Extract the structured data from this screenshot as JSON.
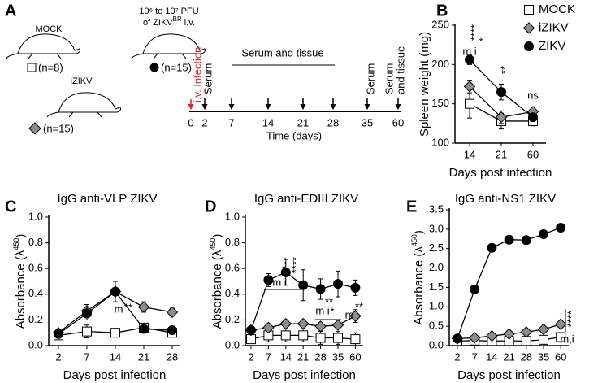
{
  "panel_a": {
    "panel": "A",
    "mock": "MOCK",
    "dose_line1": "10⁶ to 10⁷ PFU",
    "dose_line2": "of ZIKV",
    "dose_sup": "BR",
    "dose_end": " i.v.",
    "izikv": "iZIKV",
    "n_mock": "(n=8)",
    "n_zikv": "(n=15)",
    "n_izikv": "(n=15)",
    "infection": "i.v. Infection",
    "serum_left": "Serum",
    "serum_tissue_mid": "Serum and tissue",
    "serum_right": "Serum",
    "serum_tissue_right": [
      "Serum",
      "and tissue"
    ],
    "timeline_days": [
      0,
      2,
      7,
      14,
      21,
      28,
      35,
      60
    ],
    "timeline_label": "Time (days)"
  },
  "chart_data": [
    {
      "type": "line",
      "panel": "B",
      "ylabel": "Spleen weight (mg)",
      "xlabel": "Days post infection",
      "categories": [
        14,
        21,
        60
      ],
      "ylim": [
        100,
        250
      ],
      "yticks": [
        100,
        150,
        200,
        250
      ],
      "legend": "upper right",
      "series": [
        {
          "name": "MOCK",
          "color": "#ffffff",
          "marker": "square",
          "values": [
            150,
            128,
            128
          ],
          "errors": [
            18,
            10,
            6
          ]
        },
        {
          "name": "iZIKV",
          "color": "#8c8c8c",
          "marker": "diamond",
          "values": [
            172,
            133,
            140
          ],
          "errors": [
            8,
            8,
            6
          ]
        },
        {
          "name": "ZIKV",
          "color": "#000000",
          "marker": "circle",
          "values": [
            206,
            165,
            133
          ],
          "errors": [
            6,
            10,
            4
          ]
        }
      ],
      "annotations": [
        "m i",
        "****",
        "*",
        "**",
        "ns"
      ]
    },
    {
      "type": "line",
      "panel": "C",
      "title": "IgG anti-VLP ZIKV",
      "ylabel": "Absorbance (λ",
      "ylabel_sup": "450",
      "ylabel_end": ")",
      "xlabel": "Days post infection",
      "categories": [
        2,
        7,
        14,
        21,
        28
      ],
      "ylim": [
        0,
        1
      ],
      "yticks": [
        {
          "value": 0,
          "label": "0.0"
        },
        0.2,
        0.4,
        0.6,
        0.8,
        {
          "value": 1,
          "label": "1.0"
        }
      ],
      "series": [
        {
          "color": "#ffffff",
          "marker": "square",
          "values": [
            0.08,
            0.11,
            0.1,
            0.14,
            0.1
          ],
          "errors": [
            0.03,
            0.05,
            0.03,
            0.03,
            0.03
          ]
        },
        {
          "color": "#8c8c8c",
          "marker": "diamond",
          "values": [
            0.1,
            0.27,
            0.42,
            0.3,
            0.26
          ],
          "errors": [
            0.03,
            0.05,
            0.08,
            0.04,
            0.03
          ]
        },
        {
          "color": "#000000",
          "marker": "circle",
          "values": [
            0.09,
            0.25,
            0.42,
            0.13,
            0.12
          ],
          "errors": [
            0.03,
            0.05,
            0.08,
            0.03,
            0.03
          ]
        }
      ],
      "annotations": [
        "m",
        "**"
      ]
    },
    {
      "type": "line",
      "panel": "D",
      "title": "IgG anti-EDIII ZIKV",
      "ylabel": "Absorbance (λ",
      "ylabel_sup": "450",
      "ylabel_end": ")",
      "xlabel": "Days post infection",
      "categories": [
        2,
        7,
        14,
        21,
        28,
        35,
        60
      ],
      "ylim": [
        0,
        1
      ],
      "yticks": [
        {
          "value": 0,
          "label": "0.0"
        },
        0.2,
        0.4,
        0.6,
        0.8,
        {
          "value": 1,
          "label": "1.0"
        }
      ],
      "series": [
        {
          "color": "#ffffff",
          "marker": "square",
          "values": [
            0.05,
            0.08,
            0.08,
            0.08,
            0.06,
            0.06,
            0.05
          ],
          "errors": [
            0.03,
            0.05,
            0.05,
            0.05,
            0.05,
            0.05,
            0.05
          ]
        },
        {
          "color": "#8c8c8c",
          "marker": "diamond",
          "values": [
            0.12,
            0.14,
            0.17,
            0.17,
            0.15,
            0.16,
            0.23
          ],
          "errors": [
            0.02,
            0.03,
            0.03,
            0.03,
            0.03,
            0.03,
            0.05
          ]
        },
        {
          "color": "#000000",
          "marker": "circle",
          "values": [
            0.12,
            0.51,
            0.57,
            0.47,
            0.44,
            0.48,
            0.45
          ],
          "errors": [
            0.02,
            0.05,
            0.1,
            0.12,
            0.08,
            0.1,
            0.06
          ]
        }
      ],
      "annotations": [
        "m i",
        "****",
        "****",
        "m i",
        "**",
        "*",
        "m",
        "**"
      ]
    },
    {
      "type": "line",
      "panel": "E",
      "title": "IgG anti-NS1 ZIKV",
      "ylabel": "Absorbance (λ",
      "ylabel_sup": "450",
      "ylabel_end": ")",
      "xlabel": "Days post infection",
      "categories": [
        2,
        7,
        14,
        21,
        28,
        35,
        60
      ],
      "ylim": [
        0,
        3.5
      ],
      "yticks": [
        {
          "value": 0,
          "label": "0.0"
        },
        0.5,
        {
          "value": 1,
          "label": "1.0"
        },
        1.5,
        {
          "value": 2,
          "label": "2.0"
        },
        2.5,
        {
          "value": 3,
          "label": "3.0"
        },
        3.5
      ],
      "series": [
        {
          "color": "#ffffff",
          "marker": "square",
          "values": [
            0.12,
            0.13,
            0.12,
            0.12,
            0.12,
            0.15,
            0.22
          ]
        },
        {
          "color": "#8c8c8c",
          "marker": "diamond",
          "values": [
            0.18,
            0.2,
            0.25,
            0.3,
            0.35,
            0.42,
            0.55
          ]
        },
        {
          "color": "#000000",
          "marker": "circle",
          "values": [
            0.18,
            1.45,
            2.52,
            2.73,
            2.72,
            2.87,
            3.04
          ]
        }
      ],
      "annotations": [
        "****",
        "m,i"
      ]
    }
  ]
}
